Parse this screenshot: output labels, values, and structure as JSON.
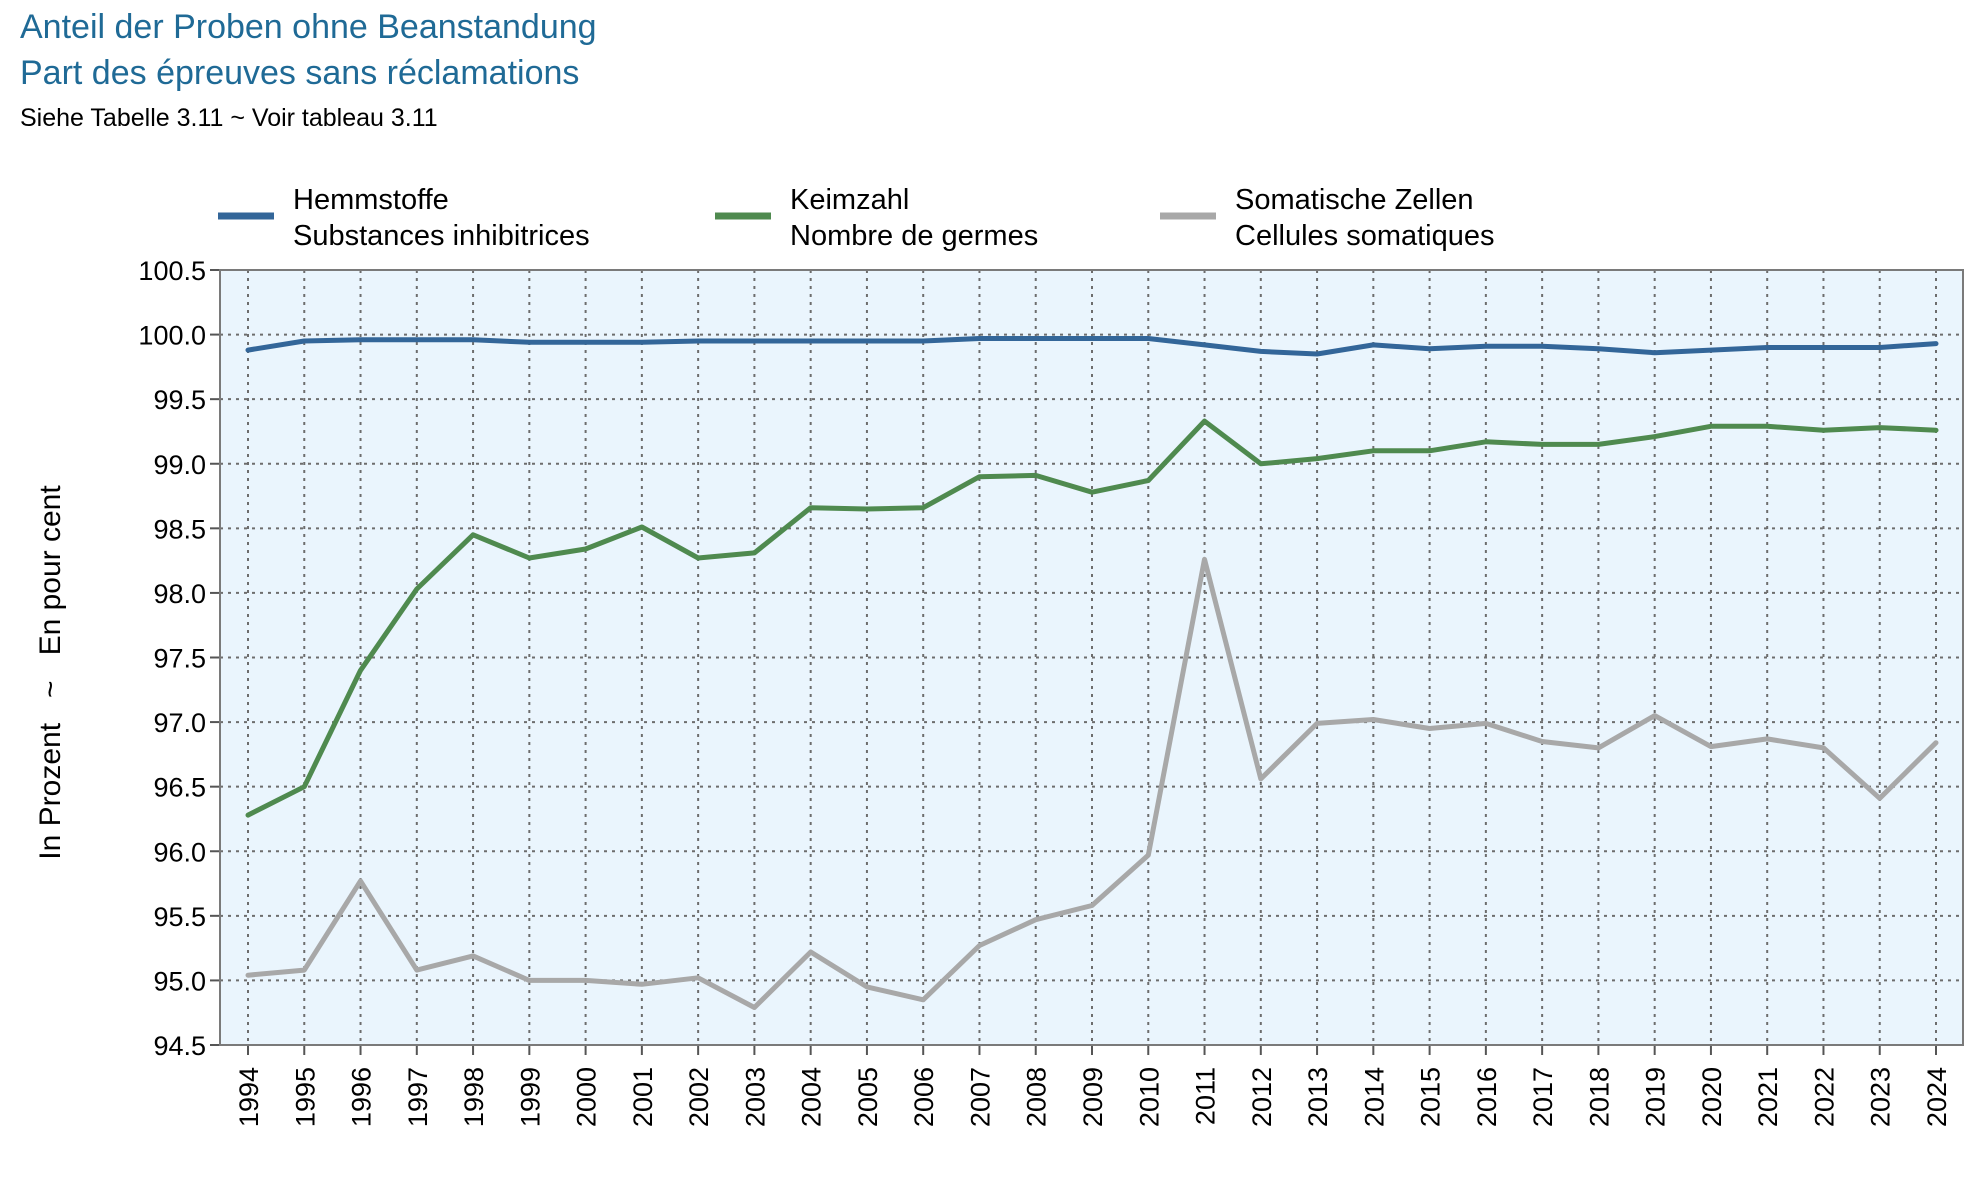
{
  "titles": {
    "line1": "Anteil der Proben ohne Beanstandung",
    "line2": "Part des épreuves sans réclamations",
    "subtitle": "Siehe Tabelle 3.11   ~   Voir tableau 3.11"
  },
  "colors": {
    "hemmstoffe": "#336699",
    "keimzahl": "#4f8a4f",
    "somatische": "#a8a8a8",
    "plot_background": "#eaf5fd",
    "grid": "#6d6d6d",
    "title": "#1f6a96"
  },
  "chart_data": {
    "type": "line",
    "ylabel": "In Prozent   ~   En pour cent",
    "ylim": [
      94.5,
      100.5
    ],
    "yticks": [
      "94.5",
      "95.0",
      "95.5",
      "96.0",
      "96.5",
      "97.0",
      "97.5",
      "98.0",
      "98.5",
      "99.0",
      "99.5",
      "100.0",
      "100.5"
    ],
    "grid": true,
    "legend_position": "top",
    "x": [
      "1994",
      "1995",
      "1996",
      "1997",
      "1998",
      "1999",
      "2000",
      "2001",
      "2002",
      "2003",
      "2004",
      "2005",
      "2006",
      "2007",
      "2008",
      "2009",
      "2010",
      "2011",
      "2012",
      "2013",
      "2014",
      "2015",
      "2016",
      "2017",
      "2018",
      "2019",
      "2020",
      "2021",
      "2022",
      "2023",
      "2024"
    ],
    "series": [
      {
        "key": "hemmstoffe",
        "name_line1": "Hemmstoffe",
        "name_line2": "Substances inhibitrices",
        "values": [
          99.88,
          99.95,
          99.96,
          99.96,
          99.96,
          99.94,
          99.94,
          99.94,
          99.95,
          99.95,
          99.95,
          99.95,
          99.95,
          99.97,
          99.97,
          99.97,
          99.97,
          99.92,
          99.87,
          99.85,
          99.92,
          99.89,
          99.91,
          99.91,
          99.89,
          99.86,
          99.88,
          99.9,
          99.9,
          99.9,
          99.93
        ]
      },
      {
        "key": "keimzahl",
        "name_line1": "Keimzahl",
        "name_line2": "Nombre de germes",
        "values": [
          96.28,
          96.5,
          97.4,
          98.03,
          98.45,
          98.27,
          98.34,
          98.51,
          98.27,
          98.31,
          98.66,
          98.65,
          98.66,
          98.9,
          98.91,
          98.78,
          98.87,
          99.33,
          99.0,
          99.04,
          99.1,
          99.1,
          99.17,
          99.15,
          99.15,
          99.21,
          99.29,
          99.29,
          99.26,
          99.28,
          99.26
        ]
      },
      {
        "key": "somatische",
        "name_line1": "Somatische Zellen",
        "name_line2": "Cellules somatiques",
        "values": [
          95.04,
          95.08,
          95.77,
          95.08,
          95.19,
          95.0,
          95.0,
          94.97,
          95.02,
          94.79,
          95.22,
          94.95,
          94.85,
          95.27,
          95.47,
          95.58,
          95.97,
          98.26,
          96.56,
          96.99,
          97.02,
          96.95,
          96.99,
          96.85,
          96.8,
          97.05,
          96.81,
          96.87,
          96.8,
          96.41,
          96.84
        ]
      }
    ]
  }
}
